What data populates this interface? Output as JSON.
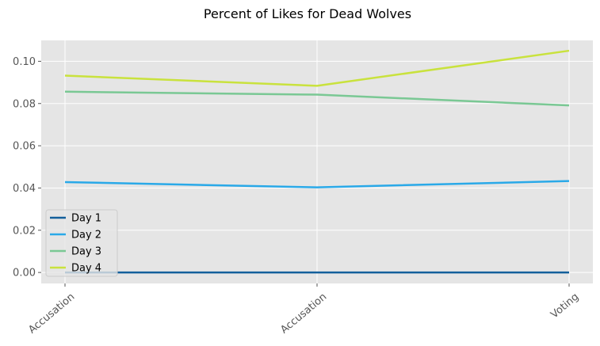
{
  "chart_data": {
    "type": "line",
    "title": "Percent of Likes for Dead Wolves",
    "xlabel": "",
    "ylabel": "",
    "categories": [
      "Accusation",
      "Accusation",
      "Voting"
    ],
    "ylim": [
      -0.0052,
      0.1099
    ],
    "yticks": [
      0.0,
      0.02,
      0.04,
      0.06,
      0.08,
      0.1
    ],
    "ytick_labels": [
      "0.00",
      "0.02",
      "0.04",
      "0.06",
      "0.08",
      "0.10"
    ],
    "grid": true,
    "legend_position": "lower-left",
    "background": "#e5e5e5",
    "series": [
      {
        "name": "Day 1",
        "color": "#135f9b",
        "values": [
          0.0,
          0.0,
          0.0
        ]
      },
      {
        "name": "Day 2",
        "color": "#2aa9e8",
        "values": [
          0.0428,
          0.0403,
          0.0433
        ]
      },
      {
        "name": "Day 3",
        "color": "#7ac894",
        "values": [
          0.0856,
          0.0842,
          0.0791
        ]
      },
      {
        "name": "Day 4",
        "color": "#c9e23d",
        "values": [
          0.0932,
          0.0884,
          0.105
        ]
      }
    ]
  }
}
